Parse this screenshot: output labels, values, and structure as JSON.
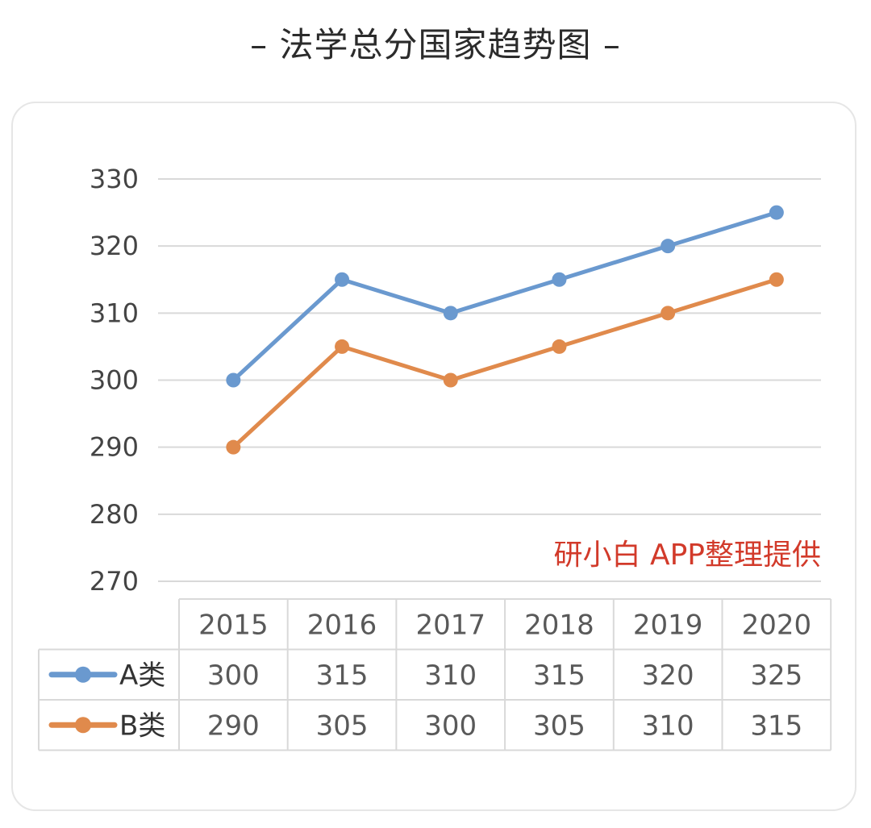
{
  "title": "– 法学总分国家趋势图 –",
  "watermark": "研小白 APP整理提供",
  "colors": {
    "seriesA": "#6a99cf",
    "seriesB": "#e08a4c"
  },
  "chart_data": {
    "type": "line",
    "title": "法学总分国家趋势图",
    "categories": [
      "2015",
      "2016",
      "2017",
      "2018",
      "2019",
      "2020"
    ],
    "series": [
      {
        "name": "A类",
        "values": [
          300,
          315,
          310,
          315,
          320,
          325
        ]
      },
      {
        "name": "B类",
        "values": [
          290,
          305,
          300,
          305,
          310,
          315
        ]
      }
    ],
    "yticks": [
      330,
      320,
      310,
      300,
      290,
      280,
      270
    ],
    "ylim": [
      270,
      330
    ],
    "xlabel": "",
    "ylabel": "",
    "grid": true,
    "data_table": true
  }
}
